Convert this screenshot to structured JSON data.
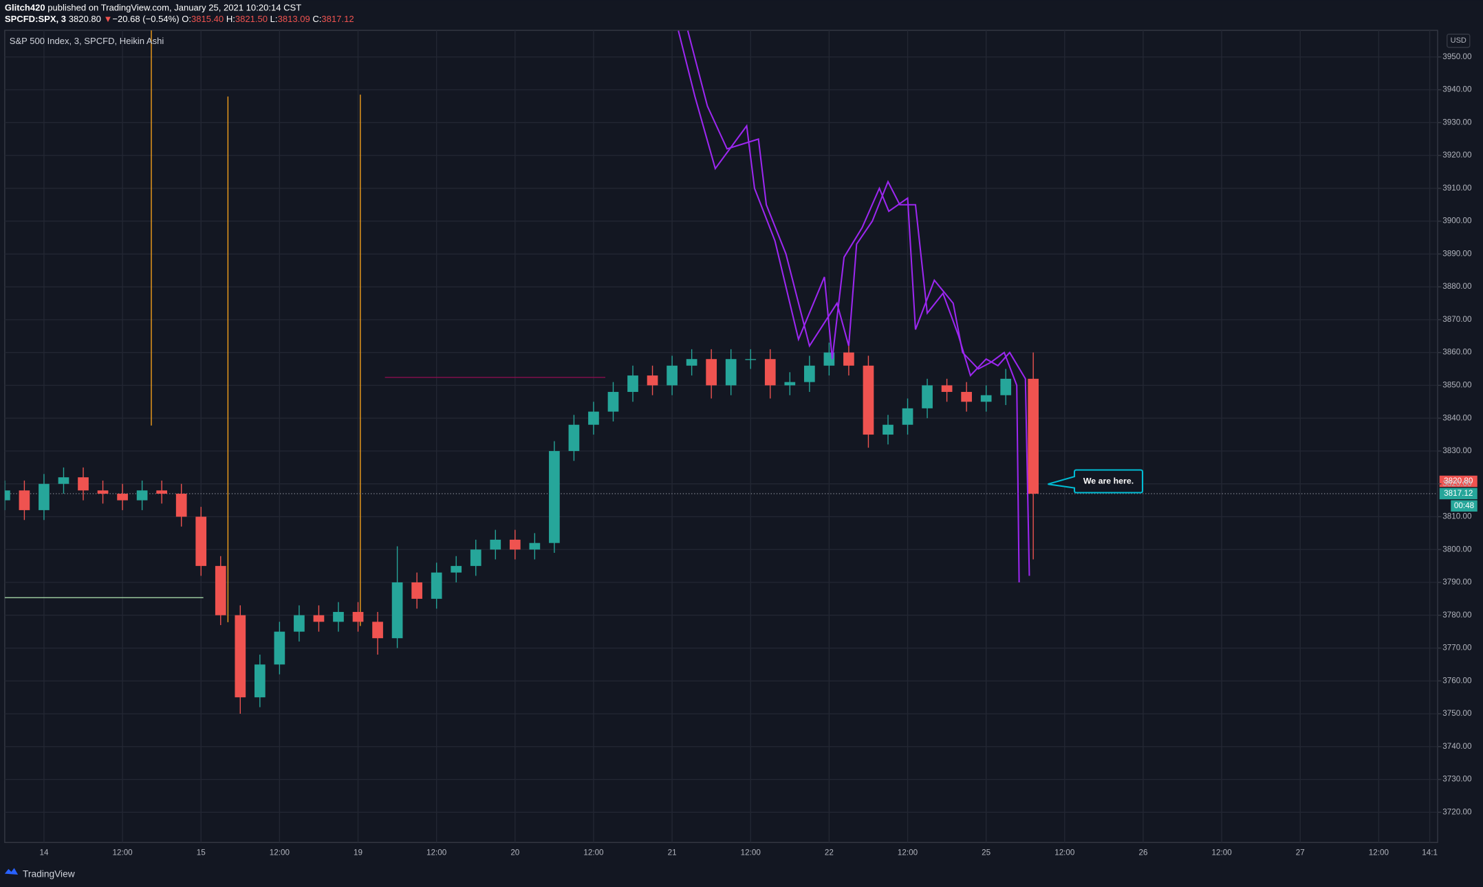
{
  "header": {
    "author": "Glitch420",
    "published": "published on TradingView.com, January 25, 2021 10:20:14 CST",
    "symbol": "SPCFD:SPX, 3",
    "price": "3820.80",
    "arrow": "▼",
    "change": "−20.68 (−0.54%)",
    "o_label": "O:",
    "open": "3815.40",
    "h_label": "H:",
    "high": "3821.50",
    "l_label": "L:",
    "low": "3813.09",
    "c_label": "C:",
    "close": "3817.12"
  },
  "chart_data": {
    "type": "candlestick",
    "title": "S&P 500 Index, 3, SPCFD, Heikin Ashi",
    "currency": "USD",
    "up_color": "#26a69a",
    "down_color": "#ef5350",
    "grid": true,
    "x": [
      -0.5,
      -0.25,
      0,
      0.25,
      0.5,
      0.75,
      1,
      1.25,
      1.5,
      1.75,
      2,
      2.25,
      2.5,
      2.75,
      3,
      3.25,
      3.5,
      3.75,
      4,
      4.25,
      4.5,
      4.75,
      5,
      5.25,
      5.5,
      5.75,
      6,
      6.25,
      6.5,
      6.75,
      7,
      7.25,
      7.5,
      7.75,
      8,
      8.25,
      8.5,
      8.75,
      9,
      9.25,
      9.5,
      9.75,
      10,
      10.25,
      10.5,
      10.75,
      11,
      11.25,
      11.5,
      11.75,
      12,
      12.25,
      12.6
    ],
    "open": [
      3815,
      3818,
      3812,
      3820,
      3822,
      3818,
      3817,
      3815,
      3818,
      3817,
      3810,
      3795,
      3780,
      3755,
      3765,
      3775,
      3780,
      3778,
      3781,
      3778,
      3773,
      3790,
      3785,
      3793,
      3795,
      3800,
      3803,
      3800,
      3802,
      3830,
      3838,
      3842,
      3848,
      3853,
      3850,
      3856,
      3858,
      3850,
      3858,
      3858,
      3850,
      3851,
      3856,
      3860,
      3856,
      3835,
      3838,
      3843,
      3850,
      3848,
      3845,
      3847,
      3852
    ],
    "high": [
      3821,
      3821,
      3823,
      3825,
      3825,
      3821,
      3820,
      3821,
      3821,
      3820,
      3813,
      3798,
      3783,
      3768,
      3778,
      3783,
      3783,
      3784,
      3784,
      3781,
      3801,
      3793,
      3796,
      3798,
      3803,
      3806,
      3806,
      3805,
      3833,
      3841,
      3845,
      3851,
      3856,
      3856,
      3859,
      3861,
      3861,
      3861,
      3861,
      3861,
      3854,
      3859,
      3863,
      3862,
      3859,
      3841,
      3846,
      3852,
      3852,
      3851,
      3850,
      3855,
      3860
    ],
    "low": [
      3812,
      3809,
      3809,
      3817,
      3815,
      3814,
      3812,
      3812,
      3814,
      3807,
      3792,
      3777,
      3750,
      3752,
      3762,
      3772,
      3775,
      3775,
      3775,
      3768,
      3770,
      3782,
      3782,
      3790,
      3792,
      3797,
      3797,
      3797,
      3799,
      3827,
      3835,
      3839,
      3845,
      3847,
      3847,
      3853,
      3846,
      3847,
      3855,
      3846,
      3847,
      3848,
      3853,
      3853,
      3831,
      3832,
      3835,
      3840,
      3845,
      3842,
      3842,
      3844,
      3797
    ],
    "close": [
      3818,
      3812,
      3820,
      3822,
      3818,
      3817,
      3815,
      3818,
      3817,
      3810,
      3795,
      3780,
      3755,
      3765,
      3775,
      3780,
      3778,
      3781,
      3778,
      3773,
      3790,
      3785,
      3793,
      3795,
      3800,
      3803,
      3800,
      3802,
      3830,
      3838,
      3842,
      3848,
      3853,
      3850,
      3856,
      3858,
      3850,
      3858,
      3858,
      3850,
      3851,
      3856,
      3860,
      3856,
      3835,
      3838,
      3843,
      3850,
      3848,
      3845,
      3847,
      3852,
      3817
    ],
    "lines": [
      {
        "color": "#9c27f0",
        "x": [
          8.08,
          8.29,
          8.55,
          8.95,
          9.05,
          9.31,
          9.61,
          9.94,
          10.04,
          10.19,
          10.42,
          10.64,
          10.76,
          11.0,
          11.1,
          11.34,
          11.58,
          11.7,
          11.9,
          12.06,
          12.23,
          12.39,
          12.42
        ],
        "values": [
          3958,
          3938,
          3916,
          3929,
          3910,
          3894,
          3864,
          3883,
          3858,
          3889,
          3898,
          3910,
          3903,
          3907,
          3867,
          3882,
          3875,
          3860,
          3855,
          3857,
          3860,
          3850,
          3790
        ]
      },
      {
        "color": "#9c27f0",
        "x": [
          8.2,
          8.45,
          8.7,
          9.1,
          9.2,
          9.45,
          9.75,
          10.1,
          10.25,
          10.35,
          10.55,
          10.75,
          10.9,
          11.1,
          11.25,
          11.45,
          11.65,
          11.8,
          12.0,
          12.15,
          12.3,
          12.5,
          12.55
        ],
        "values": [
          3958,
          3935,
          3922,
          3925,
          3905,
          3890,
          3862,
          3875,
          3862,
          3893,
          3900,
          3912,
          3905,
          3905,
          3872,
          3878,
          3865,
          3853,
          3858,
          3856,
          3860,
          3852,
          3792
        ]
      }
    ],
    "xlim": [
      -0.5,
      17.75
    ],
    "ylim": [
      3710.8,
      3958.1
    ],
    "xticks": [
      {
        "value": 0,
        "label": "14"
      },
      {
        "value": 1,
        "label": "12:00"
      },
      {
        "value": 2,
        "label": "15"
      },
      {
        "value": 3,
        "label": "12:00"
      },
      {
        "value": 4,
        "label": "19"
      },
      {
        "value": 5,
        "label": "12:00"
      },
      {
        "value": 6,
        "label": "20"
      },
      {
        "value": 7,
        "label": "12:00"
      },
      {
        "value": 8,
        "label": "21"
      },
      {
        "value": 9,
        "label": "12:00"
      },
      {
        "value": 10,
        "label": "22"
      },
      {
        "value": 11,
        "label": "12:00"
      },
      {
        "value": 12,
        "label": "25"
      },
      {
        "value": 13,
        "label": "12:00"
      },
      {
        "value": 14,
        "label": "26"
      },
      {
        "value": 15,
        "label": "12:00"
      },
      {
        "value": 16,
        "label": "27"
      },
      {
        "value": 17,
        "label": "12:00"
      },
      {
        "value": 17.65,
        "label": "14:1"
      }
    ],
    "yticks": [
      {
        "value": 3720,
        "label": "3720.00"
      },
      {
        "value": 3730,
        "label": "3730.00"
      },
      {
        "value": 3740,
        "label": "3740.00"
      },
      {
        "value": 3750,
        "label": "3750.00"
      },
      {
        "value": 3760,
        "label": "3760.00"
      },
      {
        "value": 3770,
        "label": "3770.00"
      },
      {
        "value": 3780,
        "label": "3780.00"
      },
      {
        "value": 3790,
        "label": "3790.00"
      },
      {
        "value": 3800,
        "label": "3800.00"
      },
      {
        "value": 3810,
        "label": "3810.00"
      },
      {
        "value": 3820,
        "label": "3820.00"
      },
      {
        "value": 3830,
        "label": "3830.00"
      },
      {
        "value": 3840,
        "label": "3840.00"
      },
      {
        "value": 3850,
        "label": "3850.00"
      },
      {
        "value": 3860,
        "label": "3860.00"
      },
      {
        "value": 3870,
        "label": "3870.00"
      },
      {
        "value": 3880,
        "label": "3880.00"
      },
      {
        "value": 3890,
        "label": "3890.00"
      },
      {
        "value": 3900,
        "label": "3900.00"
      },
      {
        "value": 3910,
        "label": "3910.00"
      },
      {
        "value": 3920,
        "label": "3920.00"
      },
      {
        "value": 3930,
        "label": "3930.00"
      },
      {
        "value": 3940,
        "label": "3940.00"
      },
      {
        "value": 3950,
        "label": "3950.00"
      }
    ],
    "last_label": "3817.12",
    "countdown": "00:48",
    "annotation": "We are here."
  },
  "footer": {
    "brand": "TradingView"
  }
}
